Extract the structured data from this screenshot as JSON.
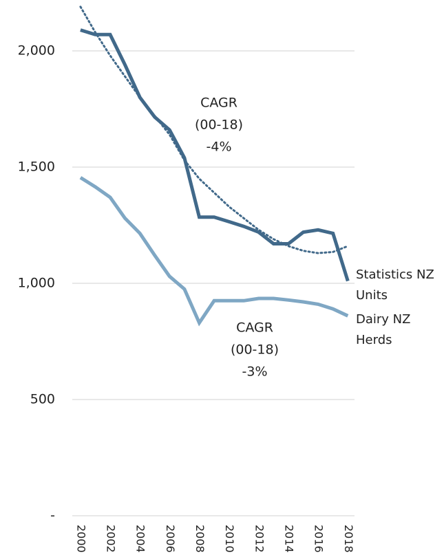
{
  "chart_data": {
    "type": "line",
    "x": [
      2000,
      2001,
      2002,
      2003,
      2004,
      2005,
      2006,
      2007,
      2008,
      2009,
      2010,
      2011,
      2012,
      2013,
      2014,
      2015,
      2016,
      2017,
      2018
    ],
    "xlim": [
      1999.45,
      2018.45
    ],
    "xticks": [
      2000,
      2002,
      2004,
      2006,
      2008,
      2010,
      2012,
      2014,
      2016,
      2018
    ],
    "ylim": [
      0,
      2200
    ],
    "yticks": [
      {
        "value": 0,
        "label": "-"
      },
      500,
      {
        "value": 1000,
        "label": "1,000"
      },
      {
        "value": 1500,
        "label": "1,500"
      },
      {
        "value": 2000,
        "label": "2,000"
      }
    ],
    "grid": true,
    "series": [
      {
        "name": "Statistics NZ Units",
        "color": "#41698a",
        "values": [
          2090,
          2070,
          2070,
          1940,
          1800,
          1715,
          1660,
          1540,
          1285,
          1285,
          1265,
          1245,
          1220,
          1170,
          1170,
          1220,
          1230,
          1215,
          1010
        ]
      },
      {
        "name": "Dairy NZ Herds",
        "color": "#7fa7c4",
        "values": [
          1455,
          1415,
          1370,
          1280,
          1215,
          1120,
          1030,
          975,
          830,
          925,
          925,
          925,
          935,
          935,
          928,
          920,
          910,
          890,
          860
        ]
      },
      {
        "color": "#41698a",
        "style": "dotted",
        "values": [
          2190,
          2080,
          1980,
          1890,
          1800,
          1720,
          1640,
          1530,
          1450,
          1390,
          1330,
          1280,
          1230,
          1190,
          1160,
          1140,
          1130,
          1135,
          1160
        ]
      }
    ],
    "annotations": [
      {
        "lines": [
          "CAGR",
          "(00-18)",
          "-4%"
        ]
      },
      {
        "lines": [
          "CAGR",
          "(00-18)",
          "-3%"
        ]
      }
    ]
  }
}
